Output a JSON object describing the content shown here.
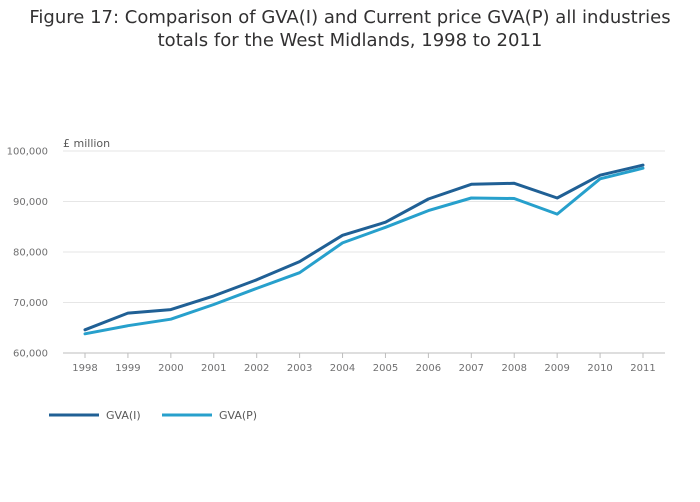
{
  "title_line1": "Figure 17: Comparison of GVA(I) and Current price GVA(P) all industries",
  "title_line2": "totals for the West Midlands, 1998 to 2011",
  "chart_data": {
    "type": "line",
    "title": "Figure 17: Comparison of GVA(I) and Current price GVA(P) all industries totals for the West Midlands, 1998 to 2011",
    "ylabel": "£ million",
    "xlabel": "",
    "categories": [
      "1998",
      "1999",
      "2000",
      "2001",
      "2002",
      "2003",
      "2004",
      "2005",
      "2006",
      "2007",
      "2008",
      "2009",
      "2010",
      "2011"
    ],
    "ylim": [
      60000,
      100000
    ],
    "yticks": [
      60000,
      70000,
      80000,
      90000,
      100000
    ],
    "ytick_labels": [
      "60,000",
      "70,000",
      "80,000",
      "90,000",
      "100,000"
    ],
    "grid": "horizontal",
    "legend": "bottom-left",
    "series": [
      {
        "name": "GVA(I)",
        "color": "#206095",
        "values": [
          64600,
          67900,
          68600,
          71300,
          74500,
          78100,
          83300,
          85900,
          90500,
          93400,
          93600,
          90700,
          95200,
          97200
        ]
      },
      {
        "name": "GVA(P)",
        "color": "#27a0cc",
        "values": [
          63800,
          65400,
          66700,
          69600,
          72800,
          75900,
          81800,
          84900,
          88200,
          90700,
          90600,
          87500,
          94500,
          96600
        ]
      }
    ]
  }
}
